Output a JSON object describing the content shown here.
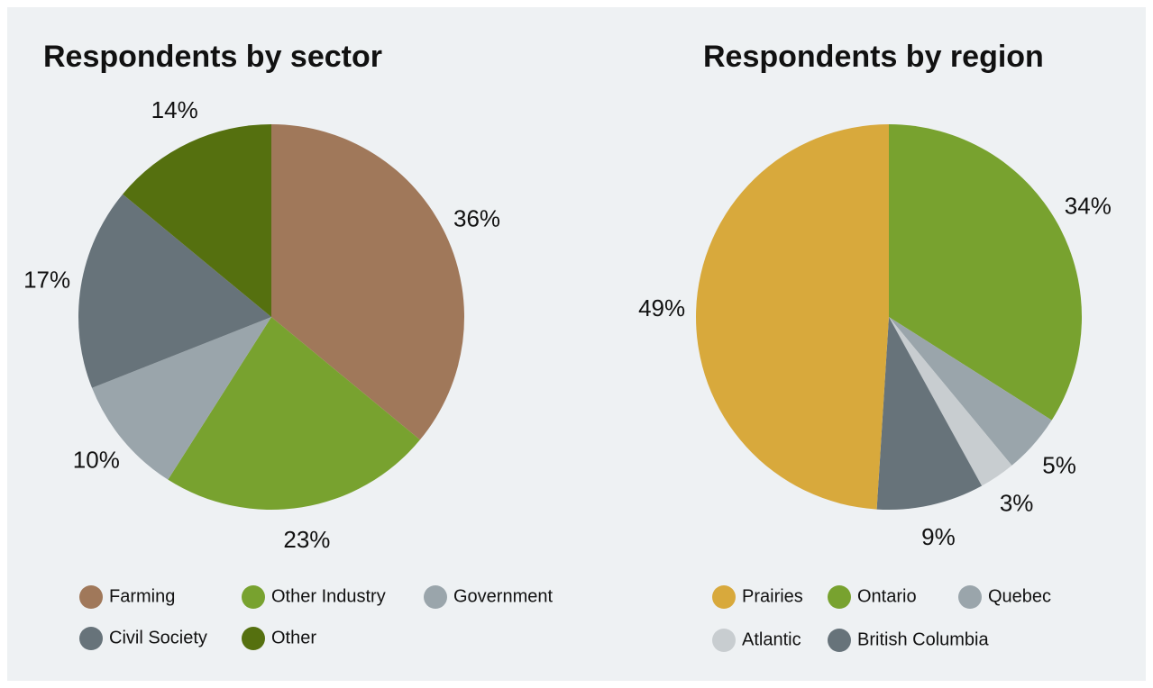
{
  "chart_data": [
    {
      "type": "pie",
      "title": "Respondents by sector",
      "categories": [
        "Farming",
        "Other Industry",
        "Government",
        "Civil Society",
        "Other"
      ],
      "values": [
        36,
        23,
        10,
        17,
        14
      ],
      "value_labels": [
        "36%",
        "23%",
        "10%",
        "17%",
        "14%"
      ],
      "colors": [
        "#a0785a",
        "#78a22f",
        "#9aa5ab",
        "#67737a",
        "#55700f"
      ],
      "start_index": 0
    },
    {
      "type": "pie",
      "title": "Respondents by region",
      "categories": [
        "Prairies",
        "Ontario",
        "Quebec",
        "Atlantic",
        "British Columbia"
      ],
      "values": [
        49,
        34,
        5,
        3,
        9
      ],
      "value_labels": [
        "49%",
        "34%",
        "5%",
        "3%",
        "9%"
      ],
      "colors": [
        "#d8a93c",
        "#78a22f",
        "#9aa5ab",
        "#c8cdd0",
        "#67737a"
      ],
      "start_index": 1
    }
  ]
}
